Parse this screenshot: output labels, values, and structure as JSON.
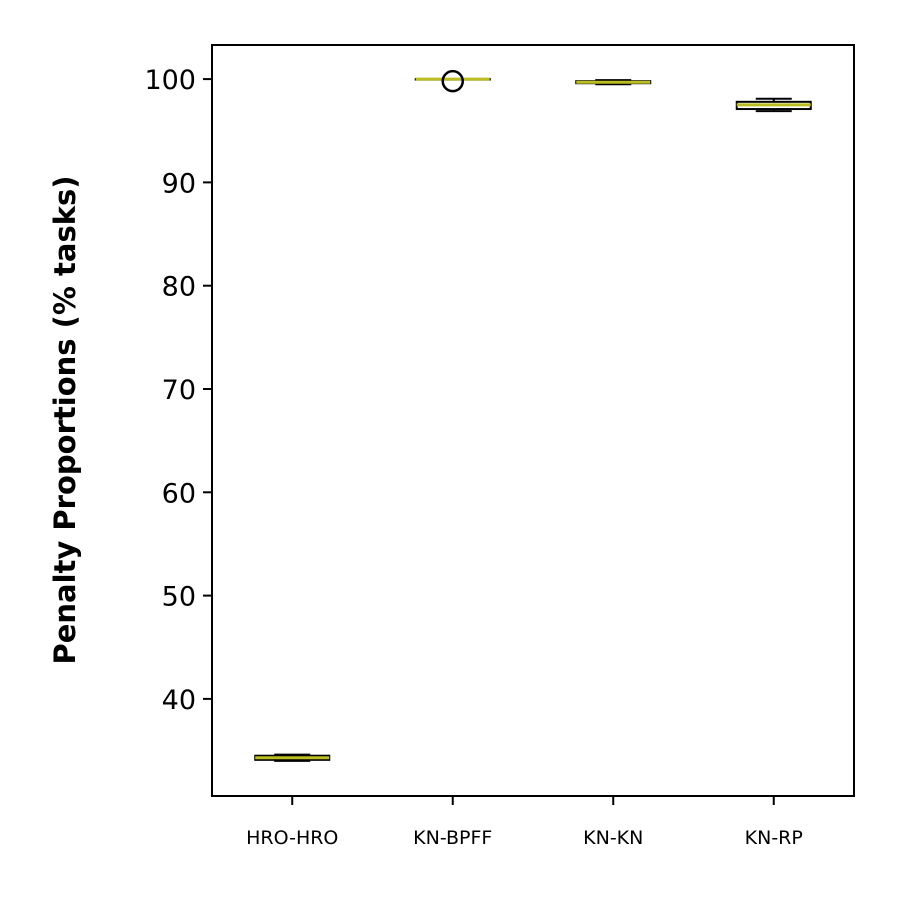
{
  "chart_data": {
    "type": "box",
    "title": "",
    "xlabel": "",
    "ylabel": "Penalty Proportions (% tasks)",
    "ylim": [
      30.6,
      103.3
    ],
    "yticks": [
      40,
      50,
      60,
      70,
      80,
      90,
      100
    ],
    "grid": false,
    "colors": {
      "median": "#bcbd22",
      "box": "#000000",
      "outlier": "#000000"
    },
    "categories": [
      "HRO-HRO",
      "KN-BPFF",
      "KN-KN",
      "KN-RP"
    ],
    "boxes": [
      {
        "name": "HRO-HRO",
        "whisker_low": 34.0,
        "q1": 34.1,
        "median": 34.3,
        "q3": 34.5,
        "whisker_high": 34.6,
        "outliers": []
      },
      {
        "name": "KN-BPFF",
        "whisker_low": 100.0,
        "q1": 100.0,
        "median": 100.0,
        "q3": 100.0,
        "whisker_high": 100.0,
        "outliers": [
          99.8
        ]
      },
      {
        "name": "KN-KN",
        "whisker_low": 99.5,
        "q1": 99.6,
        "median": 99.7,
        "q3": 99.8,
        "whisker_high": 99.9,
        "outliers": []
      },
      {
        "name": "KN-RP",
        "whisker_low": 96.9,
        "q1": 97.1,
        "median": 97.5,
        "q3": 97.8,
        "whisker_high": 98.1,
        "outliers": []
      }
    ]
  }
}
